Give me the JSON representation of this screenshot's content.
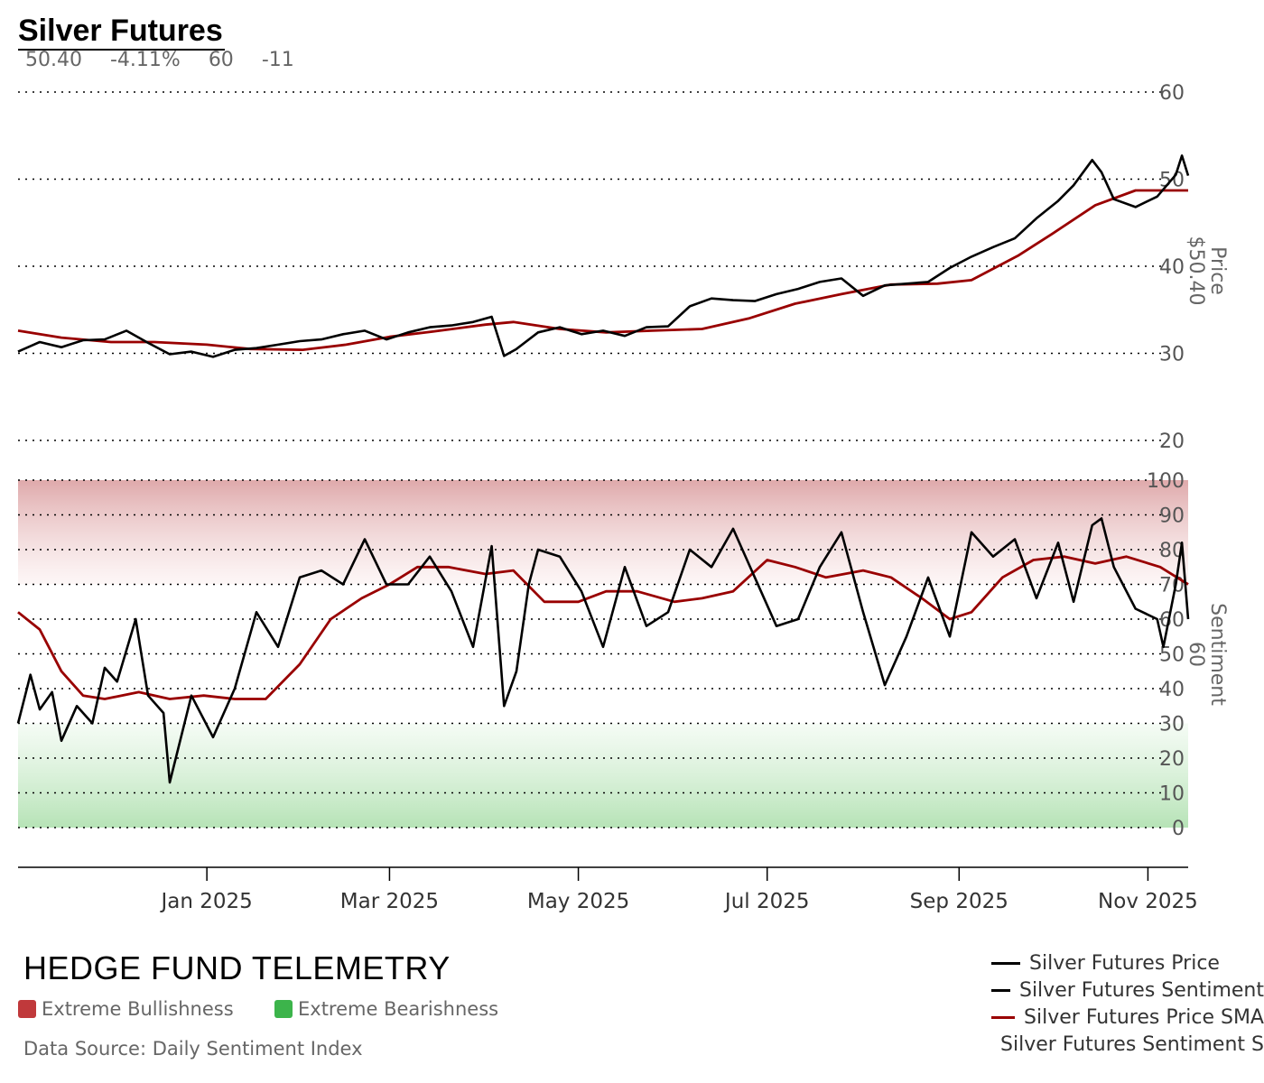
{
  "header": {
    "title": "Silver Futures",
    "price": "50.40",
    "change": "-4.11%",
    "sentiment": "60",
    "sentiment_change": "-11"
  },
  "footer": {
    "brand": "HEDGE FUND TELEMETRY",
    "legend_bull": "Extreme Bullishness",
    "legend_bear": "Extreme Bearishness",
    "source": "Data Source: Daily Sentiment Index"
  },
  "colors": {
    "price": "#000000",
    "sentiment": "#000000",
    "sma": "#990000",
    "bull_zone": "#c0393b",
    "bear_zone": "#3cb44b",
    "axis_text": "#555555"
  },
  "chart_data": [
    {
      "type": "line",
      "ylabel": "Price",
      "ylabel_value": "$50.40",
      "ylim": [
        20,
        60
      ],
      "yticks": [
        20,
        30,
        40,
        50,
        60
      ],
      "xticks": [
        "Jan 2025",
        "Mar 2025",
        "May 2025",
        "Jul 2025",
        "Sep 2025",
        "Nov 2025"
      ],
      "grid": true,
      "series": [
        {
          "name": "Silver Futures Price",
          "points": [
            [
              "2024-11-01",
              30.2
            ],
            [
              "2024-11-08",
              31.3
            ],
            [
              "2024-11-15",
              30.7
            ],
            [
              "2024-11-22",
              31.5
            ],
            [
              "2024-11-29",
              31.6
            ],
            [
              "2024-12-06",
              32.6
            ],
            [
              "2024-12-13",
              31.2
            ],
            [
              "2024-12-20",
              29.9
            ],
            [
              "2024-12-27",
              30.2
            ],
            [
              "2025-01-03",
              29.6
            ],
            [
              "2025-01-10",
              30.4
            ],
            [
              "2025-01-17",
              30.6
            ],
            [
              "2025-01-24",
              31.0
            ],
            [
              "2025-01-31",
              31.4
            ],
            [
              "2025-02-07",
              31.6
            ],
            [
              "2025-02-14",
              32.2
            ],
            [
              "2025-02-21",
              32.6
            ],
            [
              "2025-02-28",
              31.6
            ],
            [
              "2025-03-07",
              32.4
            ],
            [
              "2025-03-14",
              33.0
            ],
            [
              "2025-03-21",
              33.2
            ],
            [
              "2025-03-28",
              33.6
            ],
            [
              "2025-04-03",
              34.2
            ],
            [
              "2025-04-07",
              29.7
            ],
            [
              "2025-04-11",
              30.5
            ],
            [
              "2025-04-18",
              32.4
            ],
            [
              "2025-04-25",
              33.0
            ],
            [
              "2025-05-02",
              32.2
            ],
            [
              "2025-05-09",
              32.6
            ],
            [
              "2025-05-16",
              32.0
            ],
            [
              "2025-05-23",
              33.0
            ],
            [
              "2025-05-30",
              33.1
            ],
            [
              "2025-06-06",
              35.4
            ],
            [
              "2025-06-13",
              36.3
            ],
            [
              "2025-06-20",
              36.1
            ],
            [
              "2025-06-27",
              36.0
            ],
            [
              "2025-07-04",
              36.8
            ],
            [
              "2025-07-11",
              37.4
            ],
            [
              "2025-07-18",
              38.2
            ],
            [
              "2025-07-25",
              38.6
            ],
            [
              "2025-08-01",
              36.6
            ],
            [
              "2025-08-08",
              37.8
            ],
            [
              "2025-08-15",
              38.0
            ],
            [
              "2025-08-22",
              38.2
            ],
            [
              "2025-08-29",
              39.8
            ],
            [
              "2025-09-05",
              41.1
            ],
            [
              "2025-09-12",
              42.2
            ],
            [
              "2025-09-19",
              43.2
            ],
            [
              "2025-09-26",
              45.5
            ],
            [
              "2025-10-03",
              47.5
            ],
            [
              "2025-10-08",
              49.3
            ],
            [
              "2025-10-14",
              52.2
            ],
            [
              "2025-10-17",
              50.8
            ],
            [
              "2025-10-21",
              47.7
            ],
            [
              "2025-10-28",
              46.8
            ],
            [
              "2025-11-04",
              48.0
            ],
            [
              "2025-11-10",
              50.5
            ],
            [
              "2025-11-12",
              52.7
            ],
            [
              "2025-11-14",
              50.4
            ]
          ]
        },
        {
          "name": "Silver Futures Price SMA",
          "points": [
            [
              "2024-11-01",
              32.6
            ],
            [
              "2024-11-15",
              31.8
            ],
            [
              "2024-12-01",
              31.3
            ],
            [
              "2024-12-15",
              31.3
            ],
            [
              "2025-01-01",
              31.0
            ],
            [
              "2025-01-15",
              30.5
            ],
            [
              "2025-02-01",
              30.4
            ],
            [
              "2025-02-15",
              31.0
            ],
            [
              "2025-03-01",
              31.9
            ],
            [
              "2025-03-15",
              32.5
            ],
            [
              "2025-04-01",
              33.3
            ],
            [
              "2025-04-10",
              33.6
            ],
            [
              "2025-04-25",
              32.8
            ],
            [
              "2025-05-10",
              32.4
            ],
            [
              "2025-05-25",
              32.6
            ],
            [
              "2025-06-10",
              32.8
            ],
            [
              "2025-06-25",
              34.0
            ],
            [
              "2025-07-10",
              35.7
            ],
            [
              "2025-07-25",
              36.8
            ],
            [
              "2025-08-10",
              37.9
            ],
            [
              "2025-08-25",
              38.0
            ],
            [
              "2025-09-05",
              38.4
            ],
            [
              "2025-09-20",
              41.2
            ],
            [
              "2025-10-01",
              43.7
            ],
            [
              "2025-10-15",
              47.0
            ],
            [
              "2025-10-28",
              48.7
            ],
            [
              "2025-11-14",
              48.7
            ]
          ]
        }
      ]
    },
    {
      "type": "line",
      "ylabel": "Sentiment",
      "ylabel_value": "60",
      "ylim": [
        0,
        100
      ],
      "yticks": [
        0,
        10,
        20,
        30,
        40,
        50,
        60,
        70,
        80,
        90,
        100
      ],
      "zones": [
        {
          "label": "Extreme Bullishness",
          "from": 70,
          "to": 100
        },
        {
          "label": "Extreme Bearishness",
          "from": 0,
          "to": 30
        }
      ],
      "series": [
        {
          "name": "Silver Futures Sentiment",
          "points": [
            [
              "2024-11-01",
              30
            ],
            [
              "2024-11-05",
              44
            ],
            [
              "2024-11-08",
              34
            ],
            [
              "2024-11-12",
              39
            ],
            [
              "2024-11-15",
              25
            ],
            [
              "2024-11-20",
              35
            ],
            [
              "2024-11-25",
              30
            ],
            [
              "2024-11-29",
              46
            ],
            [
              "2024-12-03",
              42
            ],
            [
              "2024-12-09",
              60
            ],
            [
              "2024-12-13",
              38
            ],
            [
              "2024-12-18",
              33
            ],
            [
              "2024-12-20",
              13
            ],
            [
              "2024-12-27",
              38
            ],
            [
              "2025-01-03",
              26
            ],
            [
              "2025-01-10",
              40
            ],
            [
              "2025-01-17",
              62
            ],
            [
              "2025-01-24",
              52
            ],
            [
              "2025-01-31",
              72
            ],
            [
              "2025-02-07",
              74
            ],
            [
              "2025-02-14",
              70
            ],
            [
              "2025-02-21",
              83
            ],
            [
              "2025-02-28",
              70
            ],
            [
              "2025-03-07",
              70
            ],
            [
              "2025-03-14",
              78
            ],
            [
              "2025-03-21",
              68
            ],
            [
              "2025-03-28",
              52
            ],
            [
              "2025-04-03",
              81
            ],
            [
              "2025-04-07",
              35
            ],
            [
              "2025-04-11",
              45
            ],
            [
              "2025-04-15",
              70
            ],
            [
              "2025-04-18",
              80
            ],
            [
              "2025-04-25",
              78
            ],
            [
              "2025-05-02",
              68
            ],
            [
              "2025-05-09",
              52
            ],
            [
              "2025-05-16",
              75
            ],
            [
              "2025-05-23",
              58
            ],
            [
              "2025-05-30",
              62
            ],
            [
              "2025-06-06",
              80
            ],
            [
              "2025-06-13",
              75
            ],
            [
              "2025-06-20",
              86
            ],
            [
              "2025-06-27",
              72
            ],
            [
              "2025-07-04",
              58
            ],
            [
              "2025-07-11",
              60
            ],
            [
              "2025-07-18",
              75
            ],
            [
              "2025-07-25",
              85
            ],
            [
              "2025-08-01",
              62
            ],
            [
              "2025-08-08",
              41
            ],
            [
              "2025-08-15",
              55
            ],
            [
              "2025-08-22",
              72
            ],
            [
              "2025-08-29",
              55
            ],
            [
              "2025-09-05",
              85
            ],
            [
              "2025-09-12",
              78
            ],
            [
              "2025-09-19",
              83
            ],
            [
              "2025-09-26",
              66
            ],
            [
              "2025-10-03",
              82
            ],
            [
              "2025-10-08",
              65
            ],
            [
              "2025-10-14",
              87
            ],
            [
              "2025-10-17",
              89
            ],
            [
              "2025-10-21",
              75
            ],
            [
              "2025-10-28",
              63
            ],
            [
              "2025-11-04",
              60
            ],
            [
              "2025-11-06",
              52
            ],
            [
              "2025-11-10",
              70
            ],
            [
              "2025-11-12",
              82
            ],
            [
              "2025-11-14",
              60
            ]
          ]
        },
        {
          "name": "Silver Futures Sentiment SMA",
          "points": [
            [
              "2024-11-01",
              62
            ],
            [
              "2024-11-08",
              57
            ],
            [
              "2024-11-15",
              45
            ],
            [
              "2024-11-22",
              38
            ],
            [
              "2024-11-29",
              37
            ],
            [
              "2024-12-10",
              39
            ],
            [
              "2024-12-20",
              37
            ],
            [
              "2024-12-31",
              38
            ],
            [
              "2025-01-10",
              37
            ],
            [
              "2025-01-20",
              37
            ],
            [
              "2025-01-31",
              47
            ],
            [
              "2025-02-10",
              60
            ],
            [
              "2025-02-20",
              66
            ],
            [
              "2025-03-01",
              70
            ],
            [
              "2025-03-10",
              75
            ],
            [
              "2025-03-20",
              75
            ],
            [
              "2025-04-01",
              73
            ],
            [
              "2025-04-10",
              74
            ],
            [
              "2025-04-20",
              65
            ],
            [
              "2025-05-01",
              65
            ],
            [
              "2025-05-10",
              68
            ],
            [
              "2025-05-20",
              68
            ],
            [
              "2025-06-01",
              65
            ],
            [
              "2025-06-10",
              66
            ],
            [
              "2025-06-20",
              68
            ],
            [
              "2025-07-01",
              77
            ],
            [
              "2025-07-10",
              75
            ],
            [
              "2025-07-20",
              72
            ],
            [
              "2025-08-01",
              74
            ],
            [
              "2025-08-10",
              72
            ],
            [
              "2025-08-20",
              66
            ],
            [
              "2025-08-29",
              60
            ],
            [
              "2025-09-05",
              62
            ],
            [
              "2025-09-15",
              72
            ],
            [
              "2025-09-25",
              77
            ],
            [
              "2025-10-05",
              78
            ],
            [
              "2025-10-15",
              76
            ],
            [
              "2025-10-25",
              78
            ],
            [
              "2025-11-05",
              75
            ],
            [
              "2025-11-14",
              70
            ]
          ]
        }
      ]
    }
  ]
}
